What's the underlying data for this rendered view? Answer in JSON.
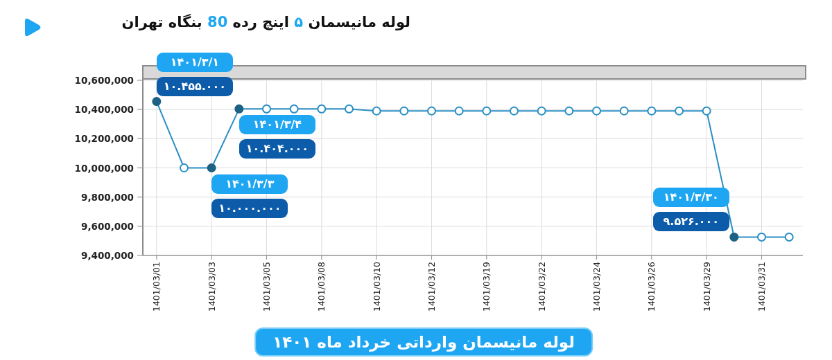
{
  "chart_data": {
    "type": "line",
    "title": "لوله مانیسمان ۵ اینچ رده 80 بنگاه تهران",
    "categories": [
      "1401/03/01",
      null,
      "1401/03/03",
      null,
      "1401/03/05",
      null,
      "1401/03/08",
      null,
      "1401/03/10",
      null,
      "1401/03/12",
      null,
      "1401/03/19",
      null,
      "1401/03/22",
      null,
      "1401/03/24",
      null,
      "1401/03/26",
      null,
      "1401/03/29",
      null,
      "1401/03/31",
      null
    ],
    "series": [
      {
        "color": "#2a8fc4",
        "values": [
          10455000,
          10000000,
          10000000,
          10404000,
          10404000,
          10404000,
          10404000,
          10404000,
          10390000,
          10390000,
          10390000,
          10390000,
          10390000,
          10390000,
          10390000,
          10390000,
          10390000,
          10390000,
          10390000,
          10390000,
          10390000,
          9526000,
          9526000,
          9526000
        ],
        "value_labels": [
          "۱۰.۴۵۵.۰۰۰",
          null,
          "۱۰.۰۰۰.۰۰۰",
          "۱۰.۴۰۴.۰۰۰",
          null,
          null,
          null,
          null,
          null,
          null,
          null,
          null,
          null,
          null,
          null,
          null,
          null,
          null,
          null,
          null,
          null,
          "۹.۵۲۶.۰۰۰",
          null,
          null
        ]
      }
    ],
    "annotations": [
      "۱۴۰۱/۳/۱",
      "۱۴۰۱/۳/۳",
      "۱۴۰۱/۳/۴",
      "۱۴۰۱/۳/۳۰",
      "لوله مانیسمان وارداتی خرداد ماه ۱۴۰۱"
    ],
    "ylim": [
      9400000,
      10600000
    ],
    "yticks": [
      {
        "value": 9400000,
        "label": "9,400,000"
      },
      {
        "value": 9600000,
        "label": "9,600,000"
      },
      {
        "value": 9800000,
        "label": "9,800,000"
      },
      {
        "value": 10000000,
        "label": "10,000,000"
      },
      {
        "value": 10200000,
        "label": "10,200,000"
      },
      {
        "value": 10400000,
        "label": "10,400,000"
      },
      {
        "value": 10600000,
        "label": "10,600,000"
      }
    ],
    "grid": true,
    "marker": "circle"
  }
}
